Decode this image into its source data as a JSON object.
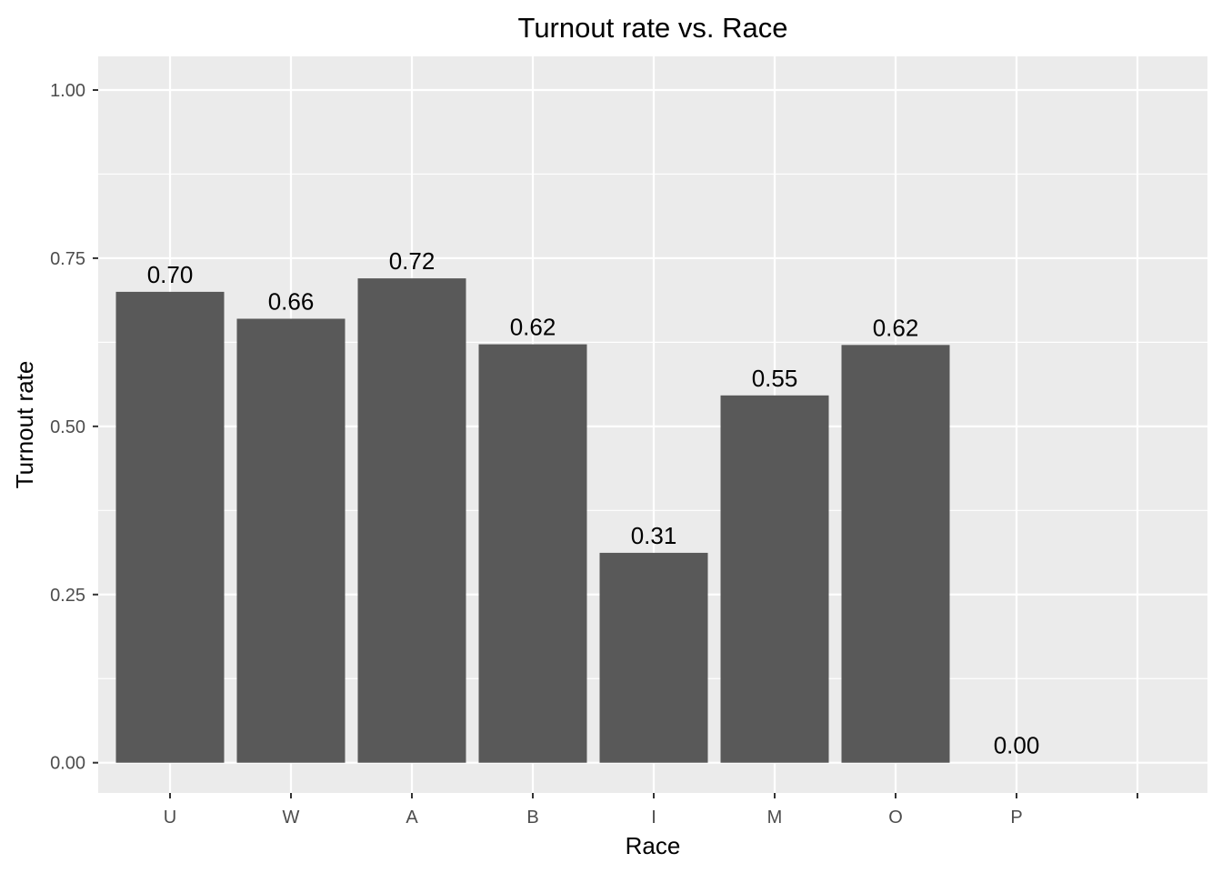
{
  "chart_data": {
    "type": "bar",
    "title": "Turnout rate vs. Race",
    "xlabel": "Race",
    "ylabel": "Turnout rate",
    "categories": [
      "U",
      "W",
      "A",
      "B",
      "I",
      "M",
      "O",
      "P",
      ""
    ],
    "values": [
      0.7,
      0.66,
      0.72,
      0.622,
      0.312,
      0.546,
      0.621,
      0.0,
      null
    ],
    "data_labels": [
      "0.70",
      "0.66",
      "0.72",
      "0.62",
      "0.31",
      "0.55",
      "0.62",
      "0.00",
      ""
    ],
    "ylim": [
      -0.045,
      1.05
    ],
    "yticks": [
      0.0,
      0.25,
      0.5,
      0.75,
      1.0
    ],
    "ytick_labels": [
      "0.00",
      "0.25",
      "0.50",
      "0.75",
      "1.00"
    ],
    "grid": true,
    "colors": {
      "bar": "#595959",
      "panel": "#ebebeb",
      "grid": "#ffffff",
      "tick_text": "#4d4d4d",
      "tick_mark": "#333333"
    }
  }
}
